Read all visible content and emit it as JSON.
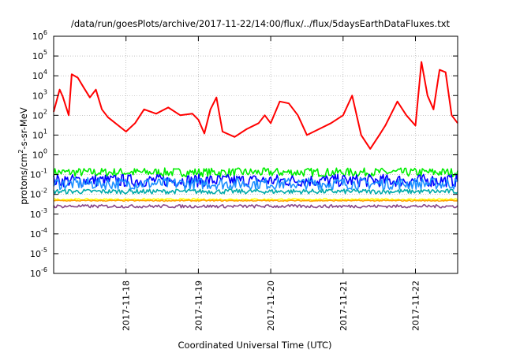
{
  "chart_data": {
    "type": "line",
    "title": "/data/run/goesPlots/archive/2017-11-22/14:00/flux/../flux/5daysEarthDataFluxes.txt",
    "xlabel": "Coordinated Universal Time (UTC)",
    "ylabel_parts": [
      "protons/cm",
      "2",
      "-s-sr-MeV"
    ],
    "x_range": [
      "2017-11-17T00:00",
      "2017-11-22T14:00"
    ],
    "x_ticks": [
      "2017-11-18",
      "2017-11-19",
      "2017-11-20",
      "2017-11-21",
      "2017-11-22"
    ],
    "y_scale": "log",
    "ylim": [
      1e-06,
      1000000.0
    ],
    "y_ticks": [
      {
        "value": 1e-06,
        "base": "10",
        "exp": "-6"
      },
      {
        "value": 1e-05,
        "base": "10",
        "exp": "-5"
      },
      {
        "value": 0.0001,
        "base": "10",
        "exp": "-4"
      },
      {
        "value": 0.001,
        "base": "10",
        "exp": "-3"
      },
      {
        "value": 0.01,
        "base": "10",
        "exp": "-2"
      },
      {
        "value": 0.1,
        "base": "10",
        "exp": "-1"
      },
      {
        "value": 1,
        "base": "10",
        "exp": "0"
      },
      {
        "value": 10,
        "base": "10",
        "exp": "1"
      },
      {
        "value": 100,
        "base": "10",
        "exp": "2"
      },
      {
        "value": 1000,
        "base": "10",
        "exp": "3"
      },
      {
        "value": 10000,
        "base": "10",
        "exp": "4"
      },
      {
        "value": 100000,
        "base": "10",
        "exp": "5"
      },
      {
        "value": 1000000,
        "base": "10",
        "exp": "6"
      }
    ],
    "grid": true,
    "legend": "none",
    "series": [
      {
        "color": "#ff0000",
        "x": [
          "2017-11-17T00:00",
          "2017-11-17T02:00",
          "2017-11-17T03:00",
          "2017-11-17T05:00",
          "2017-11-17T06:00",
          "2017-11-17T08:00",
          "2017-11-17T10:00",
          "2017-11-17T12:00",
          "2017-11-17T14:00",
          "2017-11-17T16:00",
          "2017-11-17T18:00",
          "2017-11-18T00:00",
          "2017-11-18T03:00",
          "2017-11-18T06:00",
          "2017-11-18T10:00",
          "2017-11-18T14:00",
          "2017-11-18T18:00",
          "2017-11-18T22:00",
          "2017-11-19T00:00",
          "2017-11-19T02:00",
          "2017-11-19T04:00",
          "2017-11-19T06:00",
          "2017-11-19T08:00",
          "2017-11-19T12:00",
          "2017-11-19T16:00",
          "2017-11-19T20:00",
          "2017-11-19T22:00",
          "2017-11-20T00:00",
          "2017-11-20T03:00",
          "2017-11-20T06:00",
          "2017-11-20T09:00",
          "2017-11-20T12:00",
          "2017-11-20T16:00",
          "2017-11-20T20:00",
          "2017-11-21T00:00",
          "2017-11-21T03:00",
          "2017-11-21T06:00",
          "2017-11-21T09:00",
          "2017-11-21T12:00",
          "2017-11-21T14:00",
          "2017-11-21T18:00",
          "2017-11-21T21:00",
          "2017-11-22T00:00",
          "2017-11-22T02:00",
          "2017-11-22T04:00",
          "2017-11-22T06:00",
          "2017-11-22T08:00",
          "2017-11-22T10:00",
          "2017-11-22T12:00",
          "2017-11-22T14:00"
        ],
        "y": [
          150,
          2000,
          900,
          100,
          12000,
          8000,
          2500,
          800,
          2000,
          200,
          80,
          15,
          40,
          200,
          120,
          250,
          100,
          120,
          60,
          12,
          200,
          800,
          15,
          8,
          20,
          40,
          100,
          40,
          500,
          400,
          100,
          10,
          20,
          40,
          100,
          1000,
          10,
          2,
          10,
          30,
          500,
          100,
          30,
          50000,
          1000,
          200,
          20000,
          15000,
          100,
          40
        ]
      },
      {
        "color": "#00ee00",
        "x": [
          "2017-11-17T00:00",
          "2017-11-22T14:00"
        ],
        "y": [
          0.13,
          0.13
        ],
        "noise": 0.22
      },
      {
        "color": "#0000ff",
        "x": [
          "2017-11-17T00:00",
          "2017-11-22T14:00"
        ],
        "y": [
          0.05,
          0.05
        ],
        "noise": 0.32
      },
      {
        "color": "#1e90ff",
        "x": [
          "2017-11-17T00:00",
          "2017-11-22T14:00"
        ],
        "y": [
          0.035,
          0.035
        ],
        "noise": 0.3
      },
      {
        "color": "#00aaaa",
        "x": [
          "2017-11-17T00:00",
          "2017-11-22T14:00"
        ],
        "y": [
          0.014,
          0.014
        ],
        "noise": 0.12
      },
      {
        "color": "#ffff00",
        "x": [
          "2017-11-17T00:00",
          "2017-11-22T14:00"
        ],
        "y": [
          0.0055,
          0.0055
        ],
        "noise": 0.04
      },
      {
        "color": "#ffa500",
        "x": [
          "2017-11-17T00:00",
          "2017-11-22T14:00"
        ],
        "y": [
          0.0048,
          0.0048
        ],
        "noise": 0.03
      },
      {
        "color": "#884488",
        "x": [
          "2017-11-17T00:00",
          "2017-11-22T14:00"
        ],
        "y": [
          0.0025,
          0.0025
        ],
        "noise": 0.08
      }
    ]
  }
}
